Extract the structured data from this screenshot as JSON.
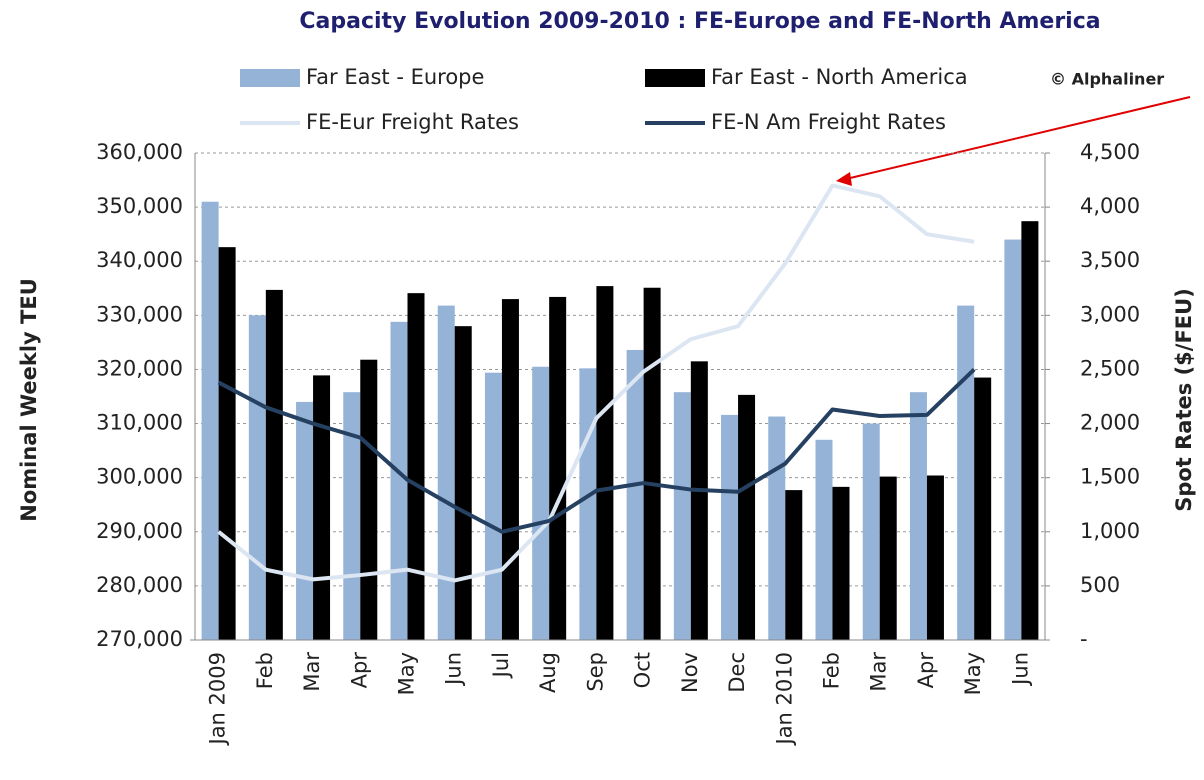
{
  "chart_data": {
    "type": "bar",
    "title": "Capacity Evolution 2009-2010 : FE-Europe and FE-North America",
    "y_label": "Nominal Weekly TEU",
    "y2_label": "Spot Rates ($/FEU)",
    "annotation": "© Alphaliner",
    "categories": [
      "Jan 2009",
      "Feb",
      "Mar",
      "Apr",
      "May",
      "Jun",
      "Jul",
      "Aug",
      "Sep",
      "Oct",
      "Nov",
      "Dec",
      "Jan 2010",
      "Feb",
      "Mar",
      "Apr",
      "May",
      "Jun"
    ],
    "series": [
      {
        "name": "Far East - Europe",
        "type": "bar",
        "color": "#95b3d7",
        "values": [
          351000,
          330000,
          314000,
          315800,
          328800,
          331800,
          319400,
          320500,
          320200,
          323600,
          315800,
          311600,
          311300,
          307000,
          310000,
          315800,
          331800,
          344000
        ]
      },
      {
        "name": "Far East - North America",
        "type": "bar",
        "color": "#000000",
        "values": [
          342600,
          334700,
          318900,
          321800,
          334100,
          328000,
          333000,
          333400,
          335400,
          335100,
          321500,
          315300,
          297700,
          298300,
          300200,
          300400,
          318500,
          347400
        ]
      },
      {
        "name": "FE-Eur Freight Rates",
        "type": "line",
        "axis": "y2",
        "color": "#dce6f2",
        "values": [
          1000,
          650,
          560,
          600,
          650,
          550,
          650,
          1100,
          2050,
          2480,
          2780,
          2900,
          3480,
          4200,
          4100,
          3750,
          3680,
          null
        ]
      },
      {
        "name": "FE-N Am Freight Rates",
        "type": "line",
        "axis": "y2",
        "color": "#254061",
        "values": [
          2380,
          2150,
          2000,
          1870,
          1480,
          1230,
          1000,
          1100,
          1380,
          1450,
          1390,
          1370,
          1630,
          2130,
          2070,
          2080,
          2500,
          null
        ]
      }
    ],
    "ylim": [
      270000,
      360000
    ],
    "yticks": [
      {
        "value": 270000,
        "label": "270,000"
      },
      {
        "value": 280000,
        "label": "280,000"
      },
      {
        "value": 290000,
        "label": "290,000"
      },
      {
        "value": 300000,
        "label": "300,000"
      },
      {
        "value": 310000,
        "label": "310,000"
      },
      {
        "value": 320000,
        "label": "320,000"
      },
      {
        "value": 330000,
        "label": "330,000"
      },
      {
        "value": 340000,
        "label": "340,000"
      },
      {
        "value": 350000,
        "label": "350,000"
      },
      {
        "value": 360000,
        "label": "360,000"
      }
    ],
    "y2lim": [
      0,
      4500
    ],
    "y2ticks": [
      {
        "value": 0,
        "label": "-"
      },
      500,
      {
        "value": 1000,
        "label": "1,000"
      },
      {
        "value": 1500,
        "label": "1,500"
      },
      {
        "value": 2000,
        "label": "2,000"
      },
      {
        "value": 2500,
        "label": "2,500"
      },
      {
        "value": 3000,
        "label": "3,000"
      },
      {
        "value": 3500,
        "label": "3,500"
      },
      {
        "value": 4000,
        "label": "4,000"
      },
      {
        "value": 4500,
        "label": "4,500"
      }
    ],
    "grid": true
  }
}
